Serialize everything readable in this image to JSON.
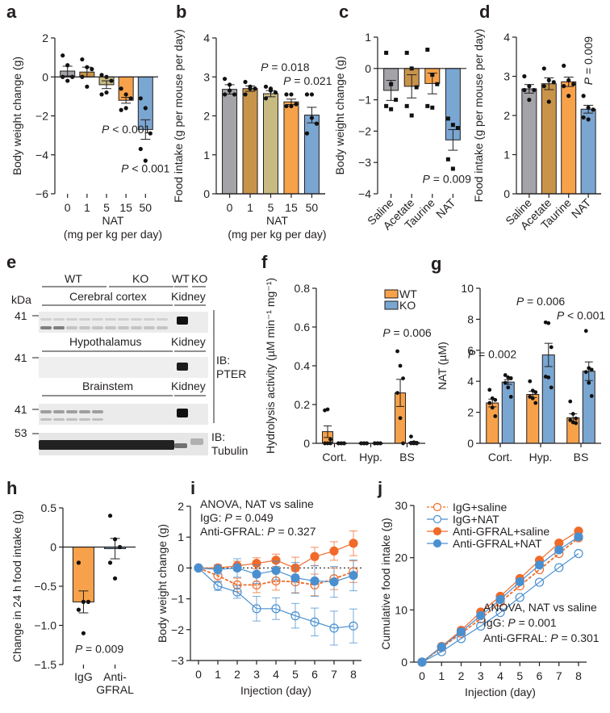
{
  "colors": {
    "gray": "#a3a3a8",
    "brown": "#c8944a",
    "khaki": "#c8bb82",
    "orange": "#f7a24a",
    "blue": "#7aa6d2",
    "line_orange": "#f06a2a",
    "line_blue": "#4a90d0",
    "axis": "#231f20"
  },
  "panels": {
    "a": {
      "label": "a"
    },
    "b": {
      "label": "b"
    },
    "c": {
      "label": "c"
    },
    "d": {
      "label": "d"
    },
    "e": {
      "label": "e"
    },
    "f": {
      "label": "f"
    },
    "g": {
      "label": "g"
    },
    "h": {
      "label": "h"
    },
    "i": {
      "label": "i"
    },
    "j": {
      "label": "j"
    }
  },
  "blot": {
    "kda_label": "kDa",
    "groups_top": [
      "WT",
      "KO",
      "WT",
      "KO"
    ],
    "sections": [
      {
        "tissue": "Cerebral cortex",
        "control": "Kidney",
        "marker": "41"
      },
      {
        "tissue": "Hypothalamus",
        "control": "Kidney",
        "marker": "41"
      },
      {
        "tissue": "Brainstem",
        "control": "Kidney",
        "marker": "41"
      }
    ],
    "tubulin_marker": "53",
    "ib_pter": [
      "IB:",
      "PTER"
    ],
    "ib_tubulin": [
      "IB:",
      "Tubulin"
    ]
  },
  "chart_data": [
    {
      "id": "a",
      "type": "bar",
      "title": "",
      "xlabel": "NAT",
      "xlabel2": "(mg per kg per day)",
      "ylabel": "Body weight change (g)",
      "categories": [
        "0",
        "1",
        "5",
        "15",
        "50"
      ],
      "values": [
        0.3,
        0.25,
        -0.4,
        -1.2,
        -2.7
      ],
      "errors": [
        0.25,
        0.25,
        0.2,
        0.15,
        0.5
      ],
      "points": [
        [
          1.1,
          0.6,
          0.0,
          0.0,
          -0.2
        ],
        [
          0.9,
          0.5,
          0.4,
          0.0,
          -0.5
        ],
        [
          0.1,
          0.0,
          -0.2,
          -0.9,
          -0.8
        ],
        [
          -0.6,
          -0.9,
          -1.1,
          -1.7,
          -1.6
        ],
        [
          -1.1,
          -1.6,
          -2.9,
          -3.7,
          -4.3
        ]
      ],
      "bar_colors": [
        "gray",
        "brown",
        "khaki",
        "orange",
        "blue"
      ],
      "ylim": [
        -6,
        2
      ],
      "yticks": [
        2,
        0,
        -2,
        -4,
        -6
      ],
      "annotations": [
        {
          "text": "< 0.001",
          "cat": 3,
          "y": -2.9
        },
        {
          "text": "< 0.001",
          "cat": 4,
          "y": -4.9
        }
      ]
    },
    {
      "id": "b",
      "type": "bar",
      "xlabel": "NAT",
      "xlabel2": "(mg per kg per day)",
      "ylabel": "Food intake (g per mouse per day)",
      "categories": [
        "0",
        "1",
        "5",
        "15",
        "50"
      ],
      "values": [
        2.68,
        2.7,
        2.57,
        2.36,
        2.02
      ],
      "errors": [
        0.12,
        0.07,
        0.08,
        0.07,
        0.2
      ],
      "points": [
        [
          2.95,
          2.8,
          2.55,
          2.55,
          2.65
        ],
        [
          2.87,
          2.75,
          2.7,
          2.55,
          2.7
        ],
        [
          2.75,
          2.65,
          2.6,
          2.45,
          2.7
        ],
        [
          2.55,
          2.55,
          2.3,
          2.25,
          2.25
        ],
        [
          2.55,
          2.55,
          1.8,
          1.55,
          1.95
        ]
      ],
      "bar_colors": [
        "gray",
        "brown",
        "khaki",
        "orange",
        "blue"
      ],
      "ylim": [
        0,
        4
      ],
      "yticks": [
        0,
        1,
        2,
        3,
        4
      ],
      "annotations": [
        {
          "text": "= 0.018",
          "cat": 2.7,
          "y": 3.15
        },
        {
          "text": "= 0.021",
          "cat": 3.8,
          "y": 2.8
        }
      ]
    },
    {
      "id": "c",
      "type": "bar",
      "ylabel": "Body weight change (g)",
      "categories": [
        "Saline",
        "Acetate",
        "Taurine",
        "NAT"
      ],
      "values": [
        -0.7,
        -0.57,
        -0.48,
        -2.28
      ],
      "errors": [
        0.32,
        0.37,
        0.33,
        0.33
      ],
      "points": [
        [
          0.5,
          -0.5,
          -1.0,
          -1.2,
          -1.3
        ],
        [
          0.5,
          0.0,
          -0.6,
          -1.2,
          -1.5
        ],
        [
          0.6,
          -0.2,
          -0.5,
          -1.2,
          -1.25
        ],
        [
          -1.6,
          -1.8,
          -1.9,
          -2.9,
          -3.2
        ]
      ],
      "bar_colors": [
        "gray",
        "brown",
        "orange",
        "blue"
      ],
      "ylim": [
        -4,
        1
      ],
      "yticks": [
        1,
        0,
        -1,
        -2,
        -3,
        -4
      ],
      "annotations": [
        {
          "text": "= 0.009",
          "cat": 2.7,
          "y": -3.65
        }
      ]
    },
    {
      "id": "d",
      "type": "bar",
      "ylabel": "Food intake (g per mouse per day)",
      "categories": [
        "Saline",
        "Acetate",
        "Taurine",
        "NAT"
      ],
      "values": [
        2.68,
        2.81,
        2.86,
        2.16
      ],
      "errors": [
        0.11,
        0.15,
        0.12,
        0.1
      ],
      "points": [
        [
          3.0,
          2.75,
          2.65,
          2.65,
          2.4
        ],
        [
          3.2,
          2.9,
          2.85,
          2.75,
          2.35
        ],
        [
          3.27,
          2.9,
          2.8,
          2.75,
          2.5
        ],
        [
          2.5,
          2.2,
          2.15,
          1.95,
          1.9
        ]
      ],
      "bar_colors": [
        "gray",
        "brown",
        "orange",
        "blue"
      ],
      "ylim": [
        0,
        4
      ],
      "yticks": [
        0,
        1,
        2,
        3,
        4
      ],
      "annotations": [
        {
          "text": "= 0.009",
          "cat": 3.0,
          "y": 3.4,
          "rotated": true
        }
      ]
    },
    {
      "id": "f",
      "type": "bar",
      "ylabel": "Hydrolysis activity (µM min⁻¹ mg⁻¹)",
      "categories": [
        "Cort.",
        "Hyp.",
        "BS"
      ],
      "series": [
        {
          "name": "WT",
          "color": "orange",
          "values": [
            0.06,
            0.0,
            0.26
          ],
          "errors": [
            0.03,
            0.0,
            0.07
          ],
          "points": [
            [
              0.17,
              0.175,
              0.02,
              0.0,
              0.0,
              0.0
            ],
            [
              0,
              0,
              0,
              0,
              0,
              0
            ],
            [
              0.475,
              0.4,
              0.335,
              0.26,
              0.13,
              0.0
            ]
          ]
        },
        {
          "name": "KO",
          "color": "blue",
          "values": [
            0.0,
            0.0,
            0.005
          ],
          "errors": [
            0,
            0,
            0.005
          ],
          "points": [
            [
              0,
              0,
              0,
              0,
              0,
              0
            ],
            [
              0,
              0,
              0,
              0,
              0,
              0
            ],
            [
              0.035,
              0.005,
              0,
              0,
              0,
              0
            ]
          ]
        }
      ],
      "legend": "top-right",
      "ylim": [
        0,
        0.8
      ],
      "yticks": [
        0,
        0.2,
        0.4,
        0.6,
        0.8
      ],
      "annotations": [
        {
          "text": "= 0.006",
          "cat": 2.0,
          "y": 0.55
        }
      ]
    },
    {
      "id": "g",
      "type": "bar",
      "ylabel": "NAT (µM)",
      "categories": [
        "Cort.",
        "Hyp.",
        "BS"
      ],
      "series": [
        {
          "name": "WT",
          "color": "orange",
          "values": [
            2.6,
            3.15,
            1.65
          ],
          "errors": [
            0.25,
            0.2,
            0.25
          ],
          "points": [
            [
              3.45,
              2.9,
              2.8,
              2.6,
              2.3,
              1.75
            ],
            [
              4.0,
              3.4,
              3.3,
              3.0,
              2.9,
              2.6
            ],
            [
              2.7,
              1.9,
              1.6,
              1.5,
              1.35,
              1.3
            ]
          ]
        },
        {
          "name": "KO",
          "color": "blue",
          "values": [
            3.95,
            5.7,
            4.65
          ],
          "errors": [
            0.15,
            0.75,
            0.6
          ],
          "points": [
            [
              4.4,
              4.25,
              4.2,
              3.9,
              3.6,
              3.0
            ],
            [
              7.8,
              7.75,
              6.2,
              4.3,
              4.25,
              3.6
            ],
            [
              7.25,
              4.85,
              4.75,
              4.6,
              3.9,
              3.05
            ]
          ]
        }
      ],
      "ylim": [
        0,
        10
      ],
      "yticks": [
        0,
        2,
        4,
        6,
        8,
        10
      ],
      "annotations": [
        {
          "text": "= 0.002",
          "cat": -0.2,
          "y": 5.5
        },
        {
          "text": "= 0.006",
          "cat": 1.0,
          "y": 8.9
        },
        {
          "text": "< 0.001",
          "cat": 2.0,
          "y": 8.0
        }
      ]
    },
    {
      "id": "h",
      "type": "bar",
      "ylabel": "Change in 24 h food intake (g)",
      "categories": [
        "IgG",
        "Anti-\nGFRAL"
      ],
      "category_lines": [
        [
          "IgG"
        ],
        [
          "Anti-",
          "GFRAL"
        ]
      ],
      "values": [
        -0.7,
        -0.02
      ],
      "errors": [
        0.14,
        0.13
      ],
      "points": [
        [
          -0.2,
          -0.7,
          -0.7,
          -0.8,
          -1.1
        ],
        [
          0.4,
          0.1,
          0.0,
          -0.2,
          -0.4
        ]
      ],
      "bar_colors": [
        "orange",
        "blue"
      ],
      "ylim": [
        -1.5,
        0.5
      ],
      "yticks": [
        0.5,
        0,
        -0.5,
        -1.0,
        -1.5
      ],
      "annotations": [
        {
          "text": "= 0.009",
          "cat": 0.5,
          "y": -1.35
        }
      ]
    },
    {
      "id": "i",
      "type": "line",
      "xlabel": "Injection (day)",
      "ylabel": "Body weight change (g)",
      "x": [
        0,
        1,
        2,
        3,
        4,
        5,
        6,
        7,
        8
      ],
      "ylim": [
        -3,
        2
      ],
      "yticks": [
        2,
        1,
        0,
        -1,
        -2,
        -3
      ],
      "xticks": [
        0,
        1,
        2,
        3,
        4,
        5,
        6,
        7,
        8
      ],
      "reference_line": 0,
      "series": [
        {
          "name": "IgG+saline",
          "color": "line_orange",
          "filled": false,
          "dashed": true,
          "values": [
            0,
            -0.25,
            -0.55,
            -0.55,
            -0.42,
            -0.45,
            -0.55,
            -0.35,
            -0.12
          ],
          "errors": [
            0,
            0.2,
            0.22,
            0.25,
            0.3,
            0.35,
            0.35,
            0.35,
            0.35
          ]
        },
        {
          "name": "IgG+NAT",
          "color": "line_blue",
          "filled": false,
          "dashed": false,
          "values": [
            0,
            -0.58,
            -0.78,
            -1.32,
            -1.32,
            -1.55,
            -1.75,
            -1.95,
            -1.88
          ],
          "errors": [
            0,
            0.15,
            0.2,
            0.4,
            0.35,
            0.4,
            0.45,
            0.55,
            0.55
          ]
        },
        {
          "name": "Anti-GFRAL+saline",
          "color": "line_orange",
          "filled": true,
          "dashed": false,
          "values": [
            0,
            0.0,
            0.07,
            0.15,
            0.25,
            0.0,
            0.37,
            0.55,
            0.8
          ],
          "errors": [
            0,
            0.1,
            0.15,
            0.18,
            0.2,
            0.35,
            0.3,
            0.3,
            0.4
          ]
        },
        {
          "name": "Anti-GFRAL+NAT",
          "color": "line_blue",
          "filled": true,
          "dashed": false,
          "values": [
            0,
            -0.05,
            0.0,
            -0.2,
            -0.08,
            -0.32,
            -0.42,
            -0.45,
            -0.24
          ],
          "errors": [
            0,
            0.15,
            0.3,
            0.3,
            0.3,
            0.5,
            0.5,
            0.5,
            0.5
          ]
        }
      ],
      "annotations": [
        "ANOVA, NAT vs saline",
        "IgG: P = 0.049",
        "Anti-GFRAL: P = 0.327"
      ],
      "annotation_parts": [
        {
          "pre": "ANOVA, NAT vs saline",
          "p": "",
          "post": ""
        },
        {
          "pre": "IgG: ",
          "p": "P",
          "post": " = 0.049"
        },
        {
          "pre": "Anti-GFRAL: ",
          "p": "P",
          "post": " = 0.327"
        }
      ]
    },
    {
      "id": "j",
      "type": "line",
      "xlabel": "Injection (day)",
      "ylabel": "Cumulative food intake (g)",
      "x": [
        0,
        1,
        2,
        3,
        4,
        5,
        6,
        7,
        8
      ],
      "ylim": [
        0,
        30
      ],
      "yticks": [
        0,
        10,
        20,
        30
      ],
      "xticks": [
        0,
        1,
        2,
        3,
        4,
        5,
        6,
        7,
        8
      ],
      "legend": "top-left",
      "series": [
        {
          "name": "IgG+saline",
          "color": "line_orange",
          "filled": false,
          "dashed": true,
          "values": [
            0,
            2.8,
            5.5,
            8.3,
            11.5,
            14.6,
            17.7,
            20.8,
            23.8
          ]
        },
        {
          "name": "IgG+NAT",
          "color": "line_blue",
          "filled": false,
          "dashed": false,
          "values": [
            0,
            2.0,
            4.5,
            6.9,
            9.5,
            12.4,
            15.3,
            18.1,
            20.8
          ]
        },
        {
          "name": "Anti-GFRAL+saline",
          "color": "line_orange",
          "filled": true,
          "dashed": false,
          "values": [
            0,
            3.0,
            6.1,
            9.6,
            12.6,
            16.0,
            19.5,
            22.8,
            25.1
          ]
        },
        {
          "name": "Anti-GFRAL+NAT",
          "color": "line_blue",
          "filled": true,
          "dashed": false,
          "values": [
            0,
            2.9,
            5.8,
            8.9,
            12.0,
            15.4,
            18.6,
            21.5,
            24.0
          ]
        }
      ],
      "annotation_parts": [
        {
          "pre": "ANOVA, NAT vs saline",
          "p": "",
          "post": ""
        },
        {
          "pre": "IgG: ",
          "p": "P",
          "post": " = 0.001"
        },
        {
          "pre": "Anti-GFRAL: ",
          "p": "P",
          "post": " = 0.301"
        }
      ]
    }
  ]
}
